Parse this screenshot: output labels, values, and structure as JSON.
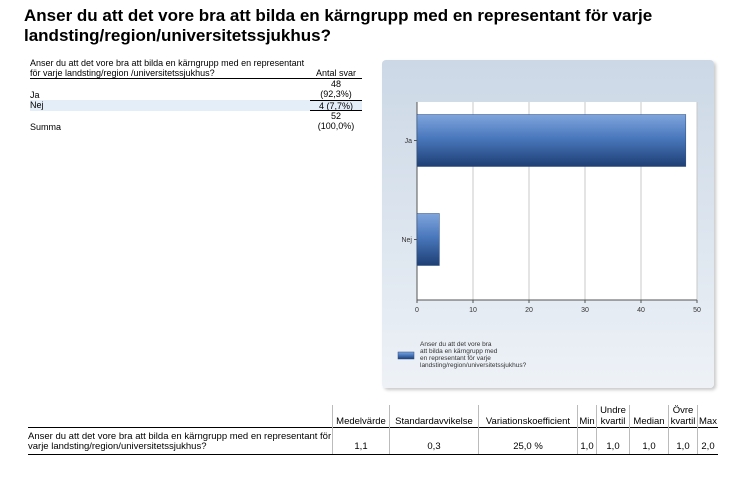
{
  "title": "Anser du att det vore bra att bilda en kärngrupp med en representant för varje landsting/region/universitetssjukhus?",
  "summary": {
    "question": "Anser du att det vore bra att bilda en kärngrupp med en representant för varje landsting/region /universitetssjukhus?",
    "count_header": "Antal svar",
    "rows": [
      {
        "label": "Ja",
        "value": "48 (92,3%)"
      },
      {
        "label": "Nej",
        "value": "4 (7,7%)"
      },
      {
        "label": "Summa",
        "value": "52 (100,0%)"
      }
    ]
  },
  "chart_data": {
    "type": "bar",
    "orientation": "horizontal",
    "categories": [
      "Ja",
      "Nej"
    ],
    "values": [
      48,
      4
    ],
    "xlim": [
      0,
      50
    ],
    "xticks": [
      0,
      10,
      20,
      30,
      40,
      50
    ],
    "grid": true,
    "legend_label": "Anser du att det vore bra att bilda en kärngrupp med en representant för varje landsting/region/universitetssjukhus?",
    "legend_lines": [
      "Anser du att det vore bra",
      "att bilda en kärngrupp med",
      "en representant för varje",
      "landsting/region/universitetssjukhus?"
    ],
    "legend_position": "bottom",
    "bar_color": "#3f6fb5"
  },
  "stats": {
    "headers": [
      "Medelvärde",
      "Standardavvikelse",
      "Variationskoefficient",
      "Min",
      "Undre kvartil",
      "Median",
      "Övre kvartil",
      "Max"
    ],
    "question": "Anser du att det vore bra att bilda en kärngrupp med en representant för varje landsting/region/universitetssjukhus?",
    "values": [
      "1,1",
      "0,3",
      "25,0 %",
      "1,0",
      "1,0",
      "1,0",
      "1,0",
      "2,0"
    ]
  }
}
